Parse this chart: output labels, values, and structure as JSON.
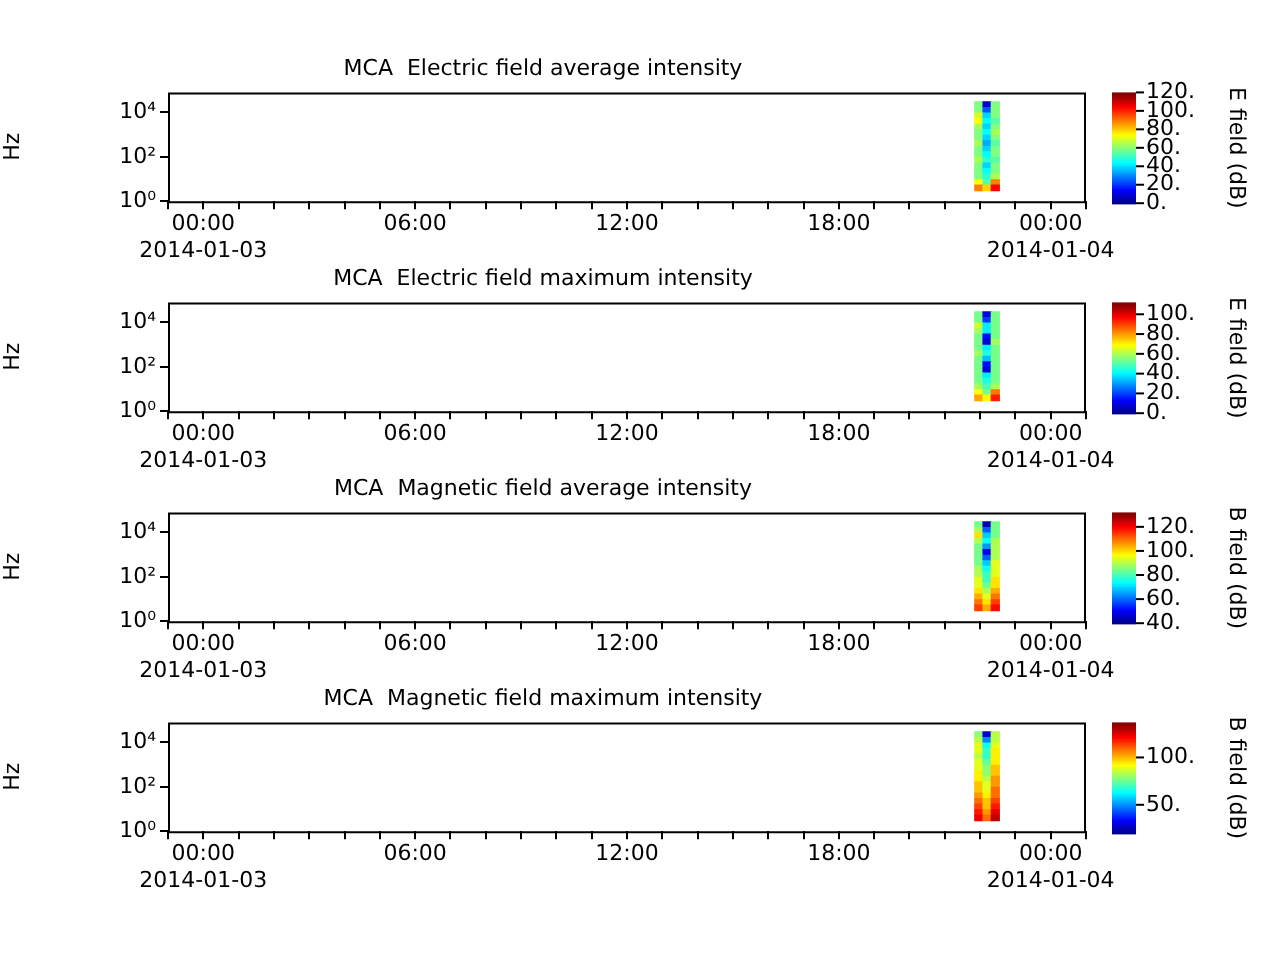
{
  "chart_data": [
    {
      "type": "heatmap",
      "title": "MCA  Electric field average intensity",
      "ylabel": "Hz",
      "clabel": "E field (dB)",
      "log": "y",
      "x": [
        "2014-01-03T21:57",
        "2014-01-03T22:11",
        "2014-01-03T22:25"
      ],
      "y": [
        23700,
        13300,
        7500,
        4220,
        2370,
        1330,
        750,
        422,
        237,
        133,
        75,
        42,
        24,
        13,
        7.5,
        4.2
      ],
      "xlim": [
        "2014-01-02T23:00",
        "2014-01-04T01:00"
      ],
      "xticks": [
        {
          "value": "2014-01-02T23:00",
          "label": null
        },
        {
          "value": "2014-01-03T00:00",
          "label": "00:00\n2014-01-03"
        },
        {
          "value": "2014-01-03T01:00",
          "label": null
        },
        {
          "value": "2014-01-03T02:00",
          "label": null
        },
        {
          "value": "2014-01-03T03:00",
          "label": null
        },
        {
          "value": "2014-01-03T04:00",
          "label": null
        },
        {
          "value": "2014-01-03T05:00",
          "label": null
        },
        {
          "value": "2014-01-03T06:00",
          "label": "06:00"
        },
        {
          "value": "2014-01-03T07:00",
          "label": null
        },
        {
          "value": "2014-01-03T08:00",
          "label": null
        },
        {
          "value": "2014-01-03T09:00",
          "label": null
        },
        {
          "value": "2014-01-03T10:00",
          "label": null
        },
        {
          "value": "2014-01-03T11:00",
          "label": null
        },
        {
          "value": "2014-01-03T12:00",
          "label": "12:00"
        },
        {
          "value": "2014-01-03T13:00",
          "label": null
        },
        {
          "value": "2014-01-03T14:00",
          "label": null
        },
        {
          "value": "2014-01-03T15:00",
          "label": null
        },
        {
          "value": "2014-01-03T16:00",
          "label": null
        },
        {
          "value": "2014-01-03T17:00",
          "label": null
        },
        {
          "value": "2014-01-03T18:00",
          "label": "18:00"
        },
        {
          "value": "2014-01-03T19:00",
          "label": null
        },
        {
          "value": "2014-01-03T20:00",
          "label": null
        },
        {
          "value": "2014-01-03T21:00",
          "label": null
        },
        {
          "value": "2014-01-03T22:00",
          "label": null
        },
        {
          "value": "2014-01-03T23:00",
          "label": null
        },
        {
          "value": "2014-01-04T00:00",
          "label": "00:00\n2014-01-04"
        },
        {
          "value": "2014-01-04T01:00",
          "label": null
        }
      ],
      "ylim": [
        1,
        80000
      ],
      "yticks": [
        {
          "value": 1,
          "label": "10⁰"
        },
        {
          "value": 100,
          "label": "10²"
        },
        {
          "value": 10000,
          "label": "10⁴"
        }
      ],
      "clim": [
        0,
        120
      ],
      "cticks": [
        {
          "value": 0,
          "label": "0."
        },
        {
          "value": 20,
          "label": "20."
        },
        {
          "value": 40,
          "label": "40."
        },
        {
          "value": 60,
          "label": "60."
        },
        {
          "value": 80,
          "label": "80."
        },
        {
          "value": 100,
          "label": "100."
        },
        {
          "value": 120,
          "label": "120."
        }
      ],
      "cells": [
        [
          60,
          10,
          60
        ],
        [
          60,
          25,
          60
        ],
        [
          70,
          40,
          60
        ],
        [
          75,
          45,
          55
        ],
        [
          65,
          40,
          60
        ],
        [
          60,
          45,
          65
        ],
        [
          60,
          40,
          60
        ],
        [
          65,
          35,
          55
        ],
        [
          60,
          40,
          60
        ],
        [
          60,
          45,
          60
        ],
        [
          65,
          50,
          55
        ],
        [
          60,
          40,
          60
        ],
        [
          60,
          45,
          60
        ],
        [
          60,
          50,
          65
        ],
        [
          75,
          55,
          90
        ],
        [
          90,
          80,
          105
        ]
      ]
    },
    {
      "type": "heatmap",
      "title": "MCA  Electric field maximum intensity",
      "ylabel": "Hz",
      "clabel": "E field (dB)",
      "log": "y",
      "x": [
        "2014-01-03T21:57",
        "2014-01-03T22:11",
        "2014-01-03T22:25"
      ],
      "y": [
        23700,
        13300,
        7500,
        4220,
        2370,
        1330,
        750,
        422,
        237,
        133,
        75,
        42,
        24,
        13,
        7.5,
        4.2
      ],
      "xlim": [
        "2014-01-02T23:00",
        "2014-01-04T01:00"
      ],
      "xticks": [
        {
          "value": "2014-01-02T23:00",
          "label": null
        },
        {
          "value": "2014-01-03T00:00",
          "label": "00:00\n2014-01-03"
        },
        {
          "value": "2014-01-03T01:00",
          "label": null
        },
        {
          "value": "2014-01-03T02:00",
          "label": null
        },
        {
          "value": "2014-01-03T03:00",
          "label": null
        },
        {
          "value": "2014-01-03T04:00",
          "label": null
        },
        {
          "value": "2014-01-03T05:00",
          "label": null
        },
        {
          "value": "2014-01-03T06:00",
          "label": "06:00"
        },
        {
          "value": "2014-01-03T07:00",
          "label": null
        },
        {
          "value": "2014-01-03T08:00",
          "label": null
        },
        {
          "value": "2014-01-03T09:00",
          "label": null
        },
        {
          "value": "2014-01-03T10:00",
          "label": null
        },
        {
          "value": "2014-01-03T11:00",
          "label": null
        },
        {
          "value": "2014-01-03T12:00",
          "label": "12:00"
        },
        {
          "value": "2014-01-03T13:00",
          "label": null
        },
        {
          "value": "2014-01-03T14:00",
          "label": null
        },
        {
          "value": "2014-01-03T15:00",
          "label": null
        },
        {
          "value": "2014-01-03T16:00",
          "label": null
        },
        {
          "value": "2014-01-03T17:00",
          "label": null
        },
        {
          "value": "2014-01-03T18:00",
          "label": "18:00"
        },
        {
          "value": "2014-01-03T19:00",
          "label": null
        },
        {
          "value": "2014-01-03T20:00",
          "label": null
        },
        {
          "value": "2014-01-03T21:00",
          "label": null
        },
        {
          "value": "2014-01-03T22:00",
          "label": null
        },
        {
          "value": "2014-01-03T23:00",
          "label": null
        },
        {
          "value": "2014-01-04T00:00",
          "label": "00:00\n2014-01-04"
        },
        {
          "value": "2014-01-04T01:00",
          "label": null
        }
      ],
      "ylim": [
        1,
        80000
      ],
      "yticks": [
        {
          "value": 1,
          "label": "10⁰"
        },
        {
          "value": 100,
          "label": "10²"
        },
        {
          "value": 10000,
          "label": "10⁴"
        }
      ],
      "clim": [
        0,
        112
      ],
      "cticks": [
        {
          "value": 0,
          "label": "0."
        },
        {
          "value": 20,
          "label": "20."
        },
        {
          "value": 40,
          "label": "40."
        },
        {
          "value": 60,
          "label": "60."
        },
        {
          "value": 80,
          "label": "80."
        },
        {
          "value": 100,
          "label": "100."
        }
      ],
      "cells": [
        [
          55,
          10,
          55
        ],
        [
          55,
          20,
          55
        ],
        [
          65,
          40,
          55
        ],
        [
          60,
          40,
          55
        ],
        [
          55,
          15,
          55
        ],
        [
          55,
          10,
          60
        ],
        [
          55,
          40,
          55
        ],
        [
          60,
          45,
          55
        ],
        [
          55,
          35,
          55
        ],
        [
          55,
          15,
          55
        ],
        [
          55,
          10,
          55
        ],
        [
          55,
          40,
          55
        ],
        [
          55,
          45,
          55
        ],
        [
          60,
          50,
          60
        ],
        [
          70,
          55,
          85
        ],
        [
          80,
          70,
          95
        ]
      ]
    },
    {
      "type": "heatmap",
      "title": "MCA  Magnetic field average intensity",
      "ylabel": "Hz",
      "clabel": "B field (dB)",
      "log": "y",
      "x": [
        "2014-01-03T21:57",
        "2014-01-03T22:11",
        "2014-01-03T22:25"
      ],
      "y": [
        23700,
        13300,
        7500,
        4220,
        2370,
        1330,
        750,
        422,
        237,
        133,
        75,
        42,
        24,
        13,
        7.5,
        4.2
      ],
      "xlim": [
        "2014-01-02T23:00",
        "2014-01-04T01:00"
      ],
      "xticks": [
        {
          "value": "2014-01-02T23:00",
          "label": null
        },
        {
          "value": "2014-01-03T00:00",
          "label": "00:00\n2014-01-03"
        },
        {
          "value": "2014-01-03T01:00",
          "label": null
        },
        {
          "value": "2014-01-03T02:00",
          "label": null
        },
        {
          "value": "2014-01-03T03:00",
          "label": null
        },
        {
          "value": "2014-01-03T04:00",
          "label": null
        },
        {
          "value": "2014-01-03T05:00",
          "label": null
        },
        {
          "value": "2014-01-03T06:00",
          "label": "06:00"
        },
        {
          "value": "2014-01-03T07:00",
          "label": null
        },
        {
          "value": "2014-01-03T08:00",
          "label": null
        },
        {
          "value": "2014-01-03T09:00",
          "label": null
        },
        {
          "value": "2014-01-03T10:00",
          "label": null
        },
        {
          "value": "2014-01-03T11:00",
          "label": null
        },
        {
          "value": "2014-01-03T12:00",
          "label": "12:00"
        },
        {
          "value": "2014-01-03T13:00",
          "label": null
        },
        {
          "value": "2014-01-03T14:00",
          "label": null
        },
        {
          "value": "2014-01-03T15:00",
          "label": null
        },
        {
          "value": "2014-01-03T16:00",
          "label": null
        },
        {
          "value": "2014-01-03T17:00",
          "label": null
        },
        {
          "value": "2014-01-03T18:00",
          "label": "18:00"
        },
        {
          "value": "2014-01-03T19:00",
          "label": null
        },
        {
          "value": "2014-01-03T20:00",
          "label": null
        },
        {
          "value": "2014-01-03T21:00",
          "label": null
        },
        {
          "value": "2014-01-03T22:00",
          "label": null
        },
        {
          "value": "2014-01-03T23:00",
          "label": null
        },
        {
          "value": "2014-01-04T00:00",
          "label": "00:00\n2014-01-04"
        },
        {
          "value": "2014-01-04T01:00",
          "label": null
        }
      ],
      "ylim": [
        1,
        80000
      ],
      "yticks": [
        {
          "value": 1,
          "label": "10⁰"
        },
        {
          "value": 100,
          "label": "10²"
        },
        {
          "value": 10000,
          "label": "10⁴"
        }
      ],
      "clim": [
        40,
        132
      ],
      "cticks": [
        {
          "value": 40,
          "label": "40."
        },
        {
          "value": 60,
          "label": "60."
        },
        {
          "value": 80,
          "label": "80."
        },
        {
          "value": 100,
          "label": "100."
        },
        {
          "value": 120,
          "label": "120."
        }
      ],
      "cells": [
        [
          85,
          45,
          85
        ],
        [
          90,
          60,
          85
        ],
        [
          100,
          70,
          85
        ],
        [
          90,
          75,
          90
        ],
        [
          85,
          65,
          90
        ],
        [
          85,
          50,
          90
        ],
        [
          85,
          60,
          90
        ],
        [
          85,
          70,
          95
        ],
        [
          90,
          75,
          95
        ],
        [
          90,
          80,
          95
        ],
        [
          95,
          80,
          100
        ],
        [
          95,
          85,
          100
        ],
        [
          100,
          90,
          105
        ],
        [
          105,
          95,
          110
        ],
        [
          110,
          100,
          115
        ],
        [
          115,
          105,
          120
        ]
      ]
    },
    {
      "type": "heatmap",
      "title": "MCA  Magnetic field maximum intensity",
      "ylabel": "Hz",
      "clabel": "B field (dB)",
      "log": "y",
      "x": [
        "2014-01-03T21:57",
        "2014-01-03T22:11",
        "2014-01-03T22:25"
      ],
      "y": [
        23700,
        13300,
        7500,
        4220,
        2370,
        1330,
        750,
        422,
        237,
        133,
        75,
        42,
        24,
        13,
        7.5,
        4.2
      ],
      "xlim": [
        "2014-01-02T23:00",
        "2014-01-04T01:00"
      ],
      "xticks": [
        {
          "value": "2014-01-02T23:00",
          "label": null
        },
        {
          "value": "2014-01-03T00:00",
          "label": "00:00\n2014-01-03"
        },
        {
          "value": "2014-01-03T01:00",
          "label": null
        },
        {
          "value": "2014-01-03T02:00",
          "label": null
        },
        {
          "value": "2014-01-03T03:00",
          "label": null
        },
        {
          "value": "2014-01-03T04:00",
          "label": null
        },
        {
          "value": "2014-01-03T05:00",
          "label": null
        },
        {
          "value": "2014-01-03T06:00",
          "label": "06:00"
        },
        {
          "value": "2014-01-03T07:00",
          "label": null
        },
        {
          "value": "2014-01-03T08:00",
          "label": null
        },
        {
          "value": "2014-01-03T09:00",
          "label": null
        },
        {
          "value": "2014-01-03T10:00",
          "label": null
        },
        {
          "value": "2014-01-03T11:00",
          "label": null
        },
        {
          "value": "2014-01-03T12:00",
          "label": "12:00"
        },
        {
          "value": "2014-01-03T13:00",
          "label": null
        },
        {
          "value": "2014-01-03T14:00",
          "label": null
        },
        {
          "value": "2014-01-03T15:00",
          "label": null
        },
        {
          "value": "2014-01-03T16:00",
          "label": null
        },
        {
          "value": "2014-01-03T17:00",
          "label": null
        },
        {
          "value": "2014-01-03T18:00",
          "label": "18:00"
        },
        {
          "value": "2014-01-03T19:00",
          "label": null
        },
        {
          "value": "2014-01-03T20:00",
          "label": null
        },
        {
          "value": "2014-01-03T21:00",
          "label": null
        },
        {
          "value": "2014-01-03T22:00",
          "label": null
        },
        {
          "value": "2014-01-03T23:00",
          "label": null
        },
        {
          "value": "2014-01-04T00:00",
          "label": "00:00\n2014-01-04"
        },
        {
          "value": "2014-01-04T01:00",
          "label": null
        }
      ],
      "ylim": [
        1,
        80000
      ],
      "yticks": [
        {
          "value": 1,
          "label": "10⁰"
        },
        {
          "value": 100,
          "label": "10²"
        },
        {
          "value": 10000,
          "label": "10⁴"
        }
      ],
      "clim": [
        20,
        137
      ],
      "cticks": [
        {
          "value": 50,
          "label": "50."
        },
        {
          "value": 100,
          "label": "100."
        }
      ],
      "cells": [
        [
          80,
          30,
          85
        ],
        [
          85,
          50,
          85
        ],
        [
          90,
          65,
          90
        ],
        [
          90,
          70,
          95
        ],
        [
          85,
          70,
          95
        ],
        [
          90,
          75,
          95
        ],
        [
          90,
          80,
          100
        ],
        [
          95,
          80,
          100
        ],
        [
          95,
          85,
          105
        ],
        [
          100,
          90,
          105
        ],
        [
          100,
          90,
          110
        ],
        [
          105,
          95,
          110
        ],
        [
          110,
          100,
          115
        ],
        [
          115,
          100,
          120
        ],
        [
          120,
          105,
          125
        ],
        [
          125,
          110,
          130
        ]
      ]
    }
  ]
}
